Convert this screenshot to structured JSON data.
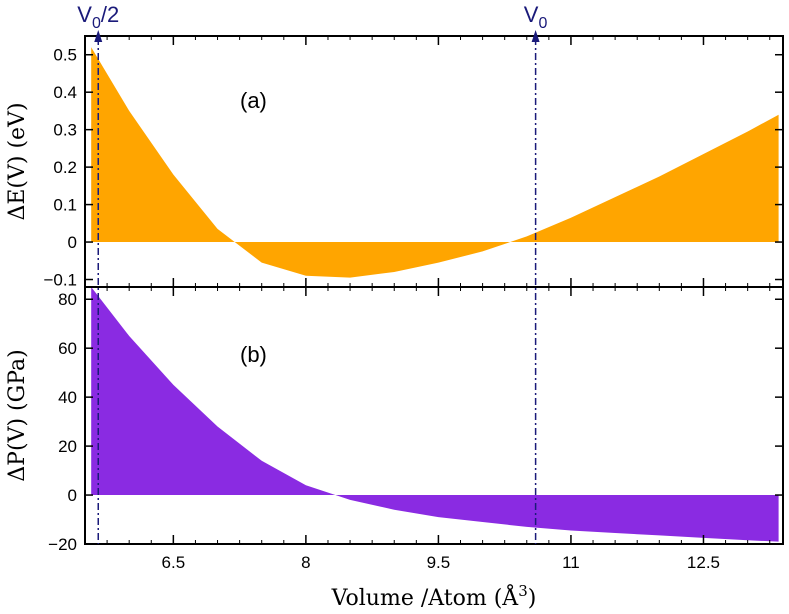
{
  "chart_data": [
    {
      "type": "area",
      "panel": "(a)",
      "ylabel": "ΔE(V) (eV)",
      "xlim": [
        5.5,
        13.4
      ],
      "ylim": [
        -0.12,
        0.55
      ],
      "yticks": [
        -0.1,
        0,
        0.1,
        0.2,
        0.3,
        0.4,
        0.5
      ],
      "ytick_labels": [
        "−0.1",
        "0",
        "0.1",
        "0.2",
        "0.3",
        "0.4",
        "0.5"
      ],
      "color": "#FFA500",
      "series": [
        {
          "x": [
            5.57,
            6.0,
            6.5,
            7.0,
            7.5,
            8.0,
            8.5,
            9.0,
            9.5,
            10.0,
            10.5,
            11.0,
            11.5,
            12.0,
            12.5,
            13.0,
            13.35
          ],
          "y": [
            0.52,
            0.35,
            0.18,
            0.035,
            -0.055,
            -0.09,
            -0.095,
            -0.08,
            -0.055,
            -0.025,
            0.015,
            0.065,
            0.12,
            0.175,
            0.235,
            0.295,
            0.34
          ]
        }
      ]
    },
    {
      "type": "area",
      "panel": "(b)",
      "ylabel": "ΔP(V) (GPa)",
      "xlabel": "Volume /Atom (Å",
      "xlabel_sup": "3",
      "xlabel_end": ")",
      "xlim": [
        5.5,
        13.4
      ],
      "ylim": [
        -20,
        85
      ],
      "xticks": [
        6.5,
        8,
        9.5,
        11,
        12.5
      ],
      "xtick_labels": [
        "6.5",
        "8",
        "9.5",
        "11",
        "12.5"
      ],
      "yticks": [
        -20,
        0,
        20,
        40,
        60,
        80
      ],
      "ytick_labels": [
        "−20",
        "0",
        "20",
        "40",
        "60",
        "80"
      ],
      "color": "#8A2BE2",
      "series": [
        {
          "x": [
            5.57,
            6.0,
            6.5,
            7.0,
            7.5,
            8.0,
            8.5,
            9.0,
            9.5,
            10.0,
            10.5,
            11.0,
            11.5,
            12.0,
            12.5,
            13.0,
            13.35
          ],
          "y": [
            85,
            65,
            45,
            28,
            14,
            4,
            -2,
            -6,
            -9,
            -11,
            -13,
            -14.5,
            -15.5,
            -16.5,
            -17.5,
            -18.5,
            -19
          ]
        }
      ]
    }
  ],
  "markers": [
    {
      "label": "V",
      "sub": "0",
      "rest": "/2",
      "x": 5.65
    },
    {
      "label": "V",
      "sub": "0",
      "rest": "",
      "x": 10.6
    }
  ]
}
